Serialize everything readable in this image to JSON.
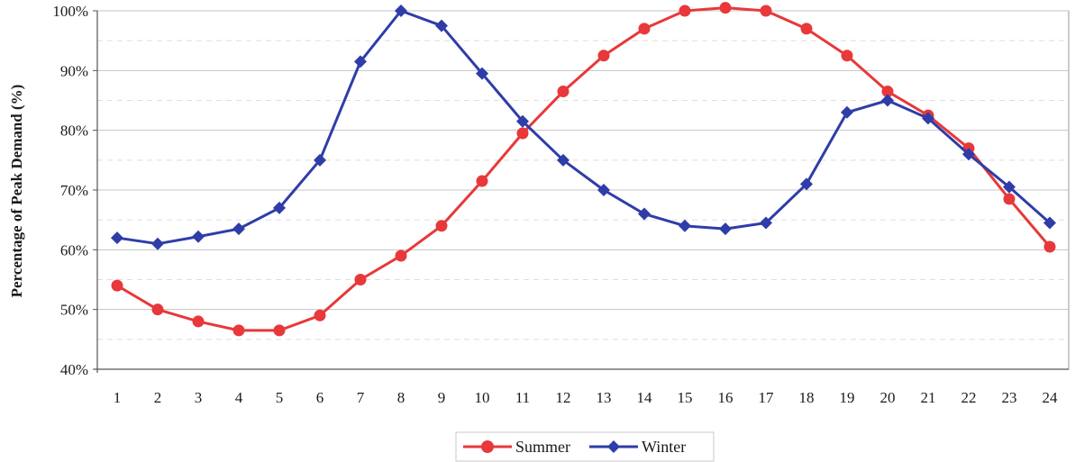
{
  "chart_data": {
    "type": "line",
    "title": "",
    "xlabel": "",
    "ylabel": "Percentage of Peak Demand (%)",
    "ylim": [
      40,
      100
    ],
    "y_ticks": [
      "40%",
      "50%",
      "60%",
      "70%",
      "80%",
      "90%",
      "100%"
    ],
    "y_tick_values": [
      40,
      50,
      60,
      70,
      80,
      90,
      100
    ],
    "categories": [
      "1",
      "2",
      "3",
      "4",
      "5",
      "6",
      "7",
      "8",
      "9",
      "10",
      "11",
      "12",
      "13",
      "14",
      "15",
      "16",
      "17",
      "18",
      "19",
      "20",
      "21",
      "22",
      "23",
      "24"
    ],
    "grid": true,
    "legend_position": "bottom",
    "series": [
      {
        "name": "Summer",
        "color": "#e8383a",
        "marker": "circle",
        "values": [
          54,
          50,
          48,
          46.5,
          46.5,
          49,
          55,
          59,
          64,
          71.5,
          79.5,
          86.5,
          92.5,
          97,
          100,
          100.5,
          100,
          97,
          92.5,
          86.5,
          82.5,
          77,
          68.5,
          60.5
        ]
      },
      {
        "name": "Winter",
        "color": "#2e3da8",
        "marker": "diamond",
        "values": [
          62,
          61,
          62.2,
          63.5,
          67,
          75,
          91.5,
          100,
          97.5,
          89.5,
          81.5,
          75,
          70,
          66,
          64,
          63.5,
          64.5,
          71,
          83,
          85,
          82,
          76,
          70.5,
          64.5
        ]
      }
    ]
  }
}
